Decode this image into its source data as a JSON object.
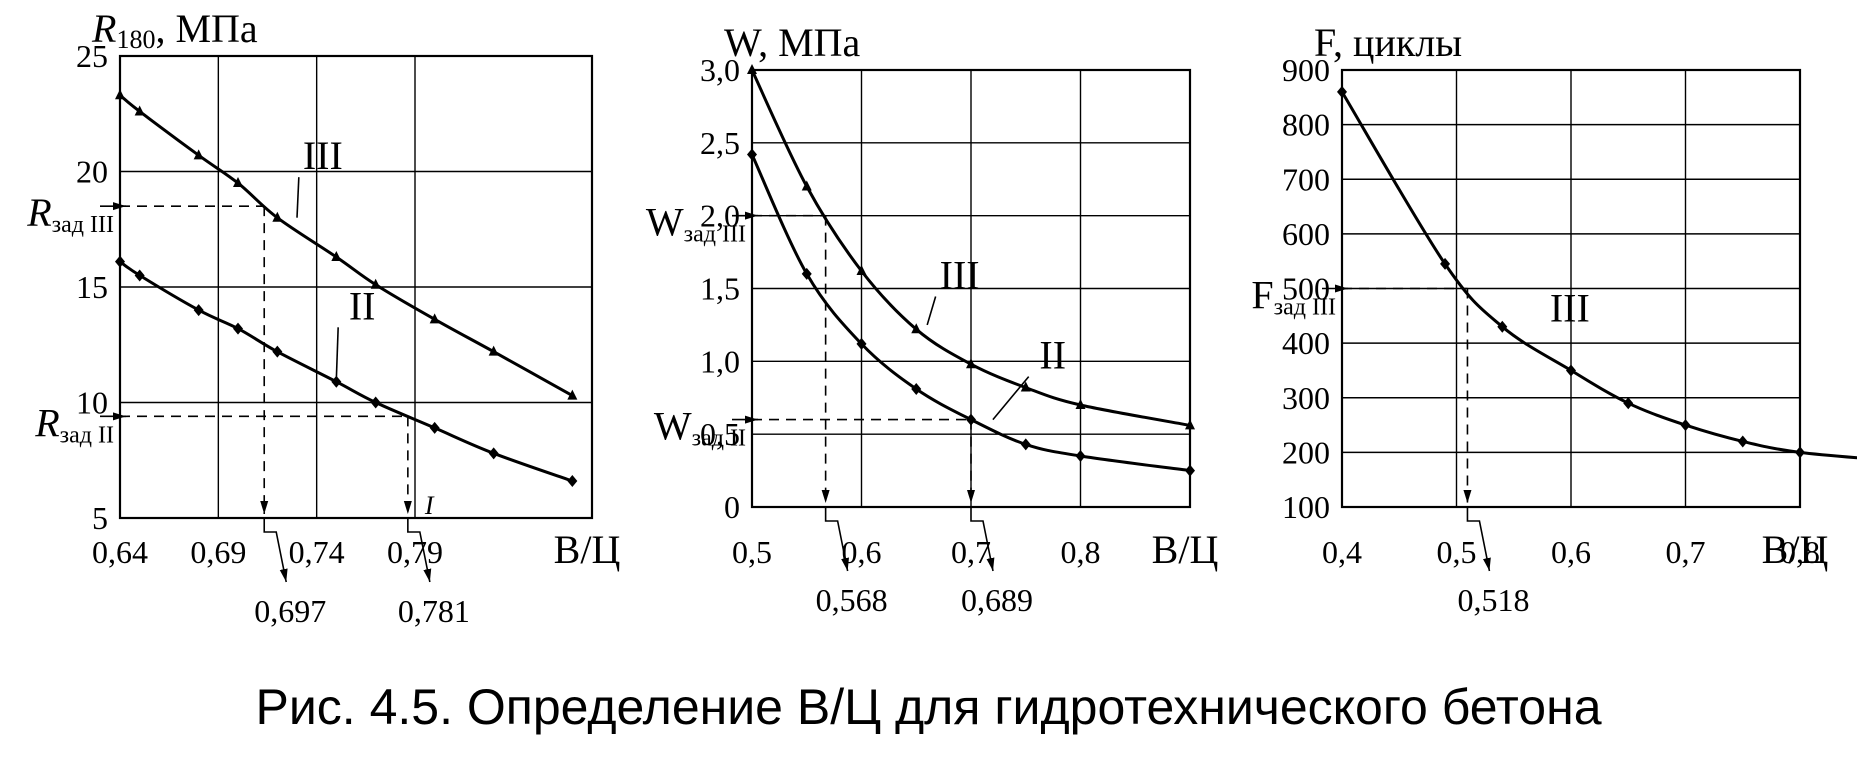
{
  "caption": "Рис. 4.5. Определение В/Ц для гидротехнического бетона",
  "chart_data": [
    {
      "type": "line",
      "title": "",
      "ylabel_main": "R",
      "ylabel_sub": "180",
      "ylabel_rest": ", МПа",
      "xlabel": "В/Ц",
      "xlim": [
        0.64,
        0.88
      ],
      "ylim": [
        5,
        25
      ],
      "grid": true,
      "x_ticks": [
        0.64,
        0.69,
        0.74,
        0.79
      ],
      "x_tick_labels": [
        "0,64",
        "0,69",
        "0,74",
        "0,79"
      ],
      "y_ticks": [
        5,
        10,
        15,
        20,
        25
      ],
      "y_tick_labels": [
        "5",
        "10",
        "15",
        "20",
        "25"
      ],
      "series": [
        {
          "name": "III",
          "marker": "triangle",
          "x": [
            0.64,
            0.65,
            0.68,
            0.7,
            0.72,
            0.75,
            0.77,
            0.8,
            0.83,
            0.87
          ],
          "y": [
            23.3,
            22.6,
            20.7,
            19.5,
            18.0,
            16.3,
            15.1,
            13.6,
            12.2,
            10.3
          ]
        },
        {
          "name": "II",
          "marker": "diamond",
          "x": [
            0.64,
            0.65,
            0.68,
            0.7,
            0.72,
            0.75,
            0.77,
            0.8,
            0.83,
            0.87
          ],
          "y": [
            16.1,
            15.5,
            14.0,
            13.2,
            12.2,
            10.9,
            10.0,
            8.9,
            7.8,
            6.6
          ]
        }
      ],
      "reference": [
        {
          "label_main": "R",
          "label_sub": "зад III",
          "y": 18.5,
          "x": 0.697,
          "x_label": "0,697",
          "curve": "III"
        },
        {
          "label_main": "R",
          "label_sub": "зад II",
          "y": 9.4,
          "x": 0.781,
          "x_label": "0,781",
          "curve": "II"
        }
      ],
      "annotation": "I"
    },
    {
      "type": "line",
      "title": "",
      "ylabel_main": "W",
      "ylabel_sub": "",
      "ylabel_rest": ", МПа",
      "xlabel": "В/Ц",
      "xlim": [
        0.5,
        0.9
      ],
      "ylim": [
        0,
        3.0
      ],
      "grid": true,
      "x_ticks": [
        0.5,
        0.6,
        0.7,
        0.8
      ],
      "x_tick_labels": [
        "0,5",
        "0,6",
        "0,7",
        "0,8"
      ],
      "y_ticks": [
        0,
        0.5,
        1.0,
        1.5,
        2.0,
        2.5,
        3.0
      ],
      "y_tick_labels": [
        "0",
        "0,5",
        "1,0",
        "1,5",
        "2,0",
        "2,5",
        "3,0"
      ],
      "series": [
        {
          "name": "III",
          "marker": "triangle",
          "x": [
            0.5,
            0.55,
            0.6,
            0.65,
            0.7,
            0.75,
            0.8,
            0.9
          ],
          "y": [
            3.0,
            2.2,
            1.62,
            1.22,
            0.98,
            0.82,
            0.7,
            0.56
          ]
        },
        {
          "name": "II",
          "marker": "diamond",
          "x": [
            0.5,
            0.55,
            0.6,
            0.65,
            0.7,
            0.75,
            0.8,
            0.9
          ],
          "y": [
            2.42,
            1.6,
            1.12,
            0.81,
            0.6,
            0.43,
            0.35,
            0.25
          ]
        }
      ],
      "reference": [
        {
          "label_main": "W",
          "label_sub": "зад III",
          "y": 2.0,
          "x": 0.568,
          "x_label": "0,568",
          "curve": "III"
        },
        {
          "label_main": "W",
          "label_sub": "зад II",
          "y": 0.6,
          "x": 0.689,
          "x_label": "0,689",
          "curve": "II"
        }
      ],
      "annotation": ""
    },
    {
      "type": "line",
      "title": "",
      "ylabel_main": "F",
      "ylabel_sub": "",
      "ylabel_rest": ", циклы",
      "xlabel": "В/Ц",
      "xlim": [
        0.4,
        0.8
      ],
      "ylim": [
        100,
        900
      ],
      "grid": true,
      "x_ticks": [
        0.4,
        0.5,
        0.6,
        0.7,
        0.8
      ],
      "x_tick_labels": [
        "0,4",
        "0,5",
        "0,6",
        "0,7",
        "0,8"
      ],
      "y_ticks": [
        100,
        200,
        300,
        400,
        500,
        600,
        700,
        800,
        900
      ],
      "y_tick_labels": [
        "100",
        "200",
        "300",
        "400",
        "500",
        "600",
        "700",
        "800",
        "900"
      ],
      "series": [
        {
          "name": "III",
          "marker": "diamond",
          "x": [
            0.4,
            0.49,
            0.54,
            0.6,
            0.65,
            0.7,
            0.75,
            0.8,
            0.88
          ],
          "y": [
            860,
            545,
            430,
            350,
            290,
            250,
            220,
            200,
            185
          ]
        }
      ],
      "reference": [
        {
          "label_main": "F",
          "label_sub": "зад III",
          "y": 500,
          "x": 0.518,
          "x_label": "0,518",
          "curve": "III"
        }
      ],
      "annotation": ""
    }
  ]
}
